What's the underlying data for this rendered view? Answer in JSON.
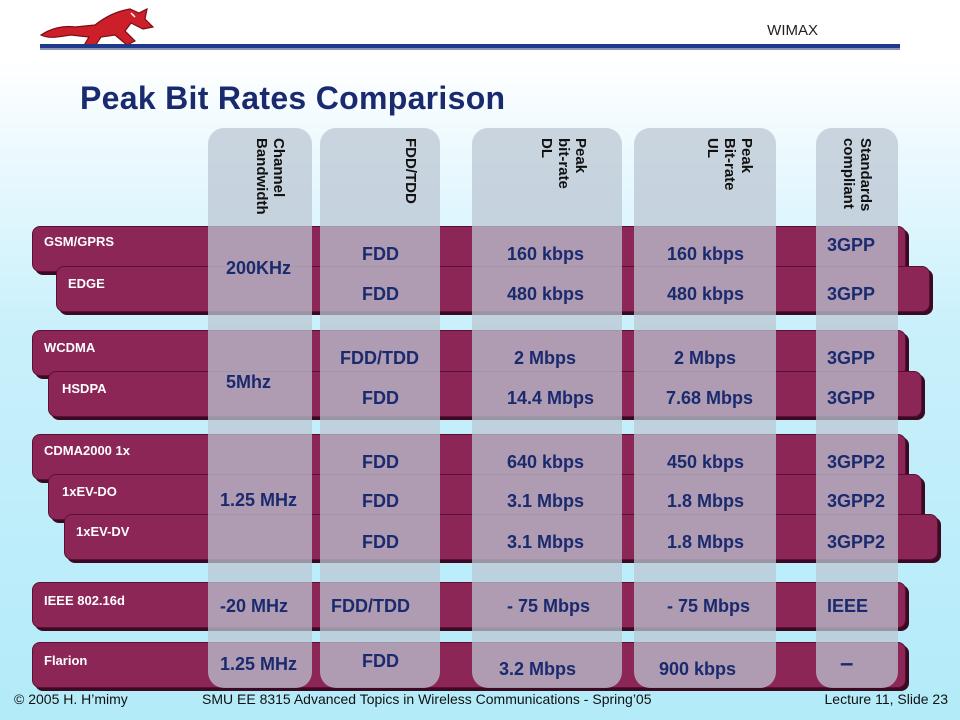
{
  "header": {
    "label": "WIMAX",
    "title": "Peak Bit Rates Comparison"
  },
  "columns": {
    "bandwidth": "Channel\nBandwidth",
    "duplex": "FDD/TDD",
    "dl": "Peak\nbit-rate\nDL",
    "ul": "Peak\nBit-rate\nUL",
    "standards": "Standards\ncompliant"
  },
  "rows": {
    "gsm": {
      "name": "GSM/GPRS",
      "duplex": "FDD",
      "dl": "160 kbps",
      "ul": "160 kbps",
      "std": "3GPP"
    },
    "edge": {
      "name": "EDGE",
      "duplex": "FDD",
      "dl": "480 kbps",
      "ul": "480 kbps",
      "std": "3GPP"
    },
    "wcdma": {
      "name": "WCDMA",
      "duplex": "FDD/TDD",
      "dl": "2 Mbps",
      "ul": "2 Mbps",
      "std": "3GPP"
    },
    "hsdpa": {
      "name": "HSDPA",
      "duplex": "FDD",
      "dl": "14.4 Mbps",
      "ul": "7.68 Mbps",
      "std": "3GPP"
    },
    "cdma": {
      "name": "CDMA2000 1x",
      "duplex": "FDD",
      "dl": "640 kbps",
      "ul": "450 kbps",
      "std": "3GPP2"
    },
    "evdo": {
      "name": "1xEV-DO",
      "duplex": "FDD",
      "dl": "3.1 Mbps",
      "ul": "1.8 Mbps",
      "std": "3GPP2"
    },
    "evdv": {
      "name": "1xEV-DV",
      "duplex": "FDD",
      "dl": "3.1 Mbps",
      "ul": "1.8 Mbps",
      "std": "3GPP2"
    },
    "ieee": {
      "name": "IEEE 802.16d",
      "duplex": "FDD/TDD",
      "dl": "- 75 Mbps",
      "ul": "- 75 Mbps",
      "std": "IEEE",
      "bw": "-20 MHz"
    },
    "flarion": {
      "name": "Flarion",
      "duplex": "FDD",
      "dl": "3.2 Mbps",
      "ul": "900 kbps",
      "std": "–",
      "bw": "1.25 MHz"
    }
  },
  "groups": {
    "gsm_bw": "200KHz",
    "wcdma_bw": "5Mhz",
    "cdma_bw": "1.25 MHz"
  },
  "footer": {
    "copyright": "© 2005 H. H’mimy",
    "course": "SMU EE 8315 Advanced Topics in Wireless Communications - Spring’05",
    "slide": "Lecture 11, Slide 23"
  },
  "colors": {
    "row_band": "#8c2657",
    "title": "#1a2a6e",
    "rule": "#1f3a8a"
  }
}
